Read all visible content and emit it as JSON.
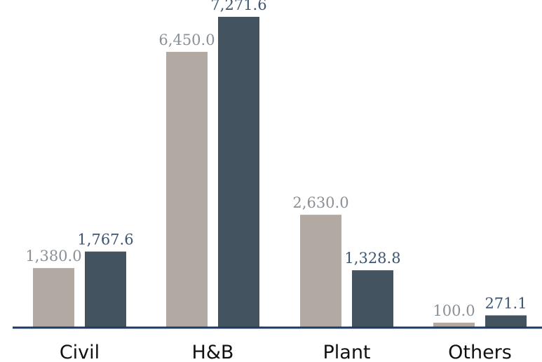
{
  "chart_data": {
    "type": "bar",
    "categories": [
      "Civil",
      "H&B",
      "Plant",
      "Others"
    ],
    "series": [
      {
        "values": [
          1380.0,
          6450.0,
          2630.0,
          100.0
        ],
        "labels": [
          "1,380.0",
          "6,450.0",
          "2,630.0",
          "100.0"
        ],
        "color": "#b2a9a2"
      },
      {
        "values": [
          1767.6,
          7271.6,
          1328.8,
          271.1
        ],
        "labels": [
          "1,767.6",
          "7,271.6",
          "1,328.8",
          "271.1"
        ],
        "color": "#43535f"
      }
    ],
    "label_colors": [
      "#8a9097",
      "#3d5572"
    ],
    "axis_color": "#1f3a5f",
    "ylim": [
      0,
      7600
    ],
    "grid": false,
    "legend": "none"
  }
}
